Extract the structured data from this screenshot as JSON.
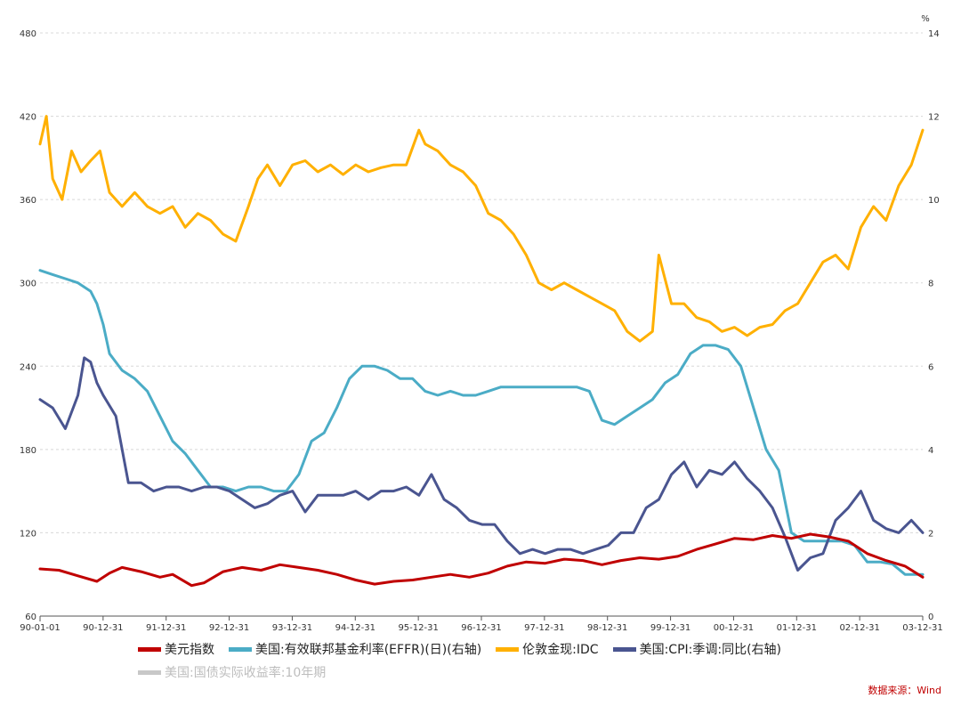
{
  "chart_data": {
    "type": "line",
    "left_axis": {
      "ticks": [
        "60",
        "120",
        "180",
        "240",
        "300",
        "360",
        "420",
        "480"
      ],
      "range": [
        60,
        480
      ]
    },
    "right_axis": {
      "unit": "%",
      "ticks": [
        "0",
        "2",
        "4",
        "6",
        "8",
        "10",
        "12",
        "14"
      ],
      "range": [
        0,
        14
      ]
    },
    "x_ticks": [
      "90-01-01",
      "90-12-31",
      "91-12-31",
      "92-12-31",
      "93-12-31",
      "94-12-31",
      "95-12-31",
      "96-12-31",
      "97-12-31",
      "98-12-31",
      "99-12-31",
      "00-12-31",
      "01-12-31",
      "02-12-31",
      "03-12-31"
    ],
    "grid": "horizontal dashed",
    "legend_position": "bottom",
    "series": [
      {
        "name": "美元指数",
        "axis": "left",
        "color": "#c00000",
        "x": [
          1990.0,
          1990.3,
          1990.6,
          1990.9,
          1991.1,
          1991.3,
          1991.6,
          1991.9,
          1992.1,
          1992.4,
          1992.6,
          1992.9,
          1993.2,
          1993.5,
          1993.8,
          1994.1,
          1994.4,
          1994.7,
          1995.0,
          1995.3,
          1995.6,
          1995.9,
          1996.2,
          1996.5,
          1996.8,
          1997.1,
          1997.4,
          1997.7,
          1998.0,
          1998.3,
          1998.6,
          1998.9,
          1999.2,
          1999.5,
          1999.8,
          2000.1,
          2000.4,
          2000.7,
          2001.0,
          2001.3,
          2001.6,
          2001.9,
          2002.2,
          2002.5,
          2002.8,
          2003.1,
          2003.4,
          2003.7,
          2003.98
        ],
        "y": [
          94,
          93,
          89,
          85,
          91,
          95,
          92,
          88,
          90,
          82,
          84,
          92,
          95,
          93,
          97,
          95,
          93,
          90,
          86,
          83,
          85,
          86,
          88,
          90,
          88,
          91,
          96,
          99,
          98,
          101,
          100,
          97,
          100,
          102,
          101,
          103,
          108,
          112,
          116,
          115,
          118,
          116,
          119,
          117,
          114,
          105,
          100,
          96,
          88
        ]
      },
      {
        "name": "美国:有效联邦基金利率(EFFR)(日)(右轴)",
        "axis": "right",
        "color": "#4bacc6",
        "x": [
          1990.0,
          1990.2,
          1990.4,
          1990.6,
          1990.8,
          1990.9,
          1991.0,
          1991.1,
          1991.3,
          1991.5,
          1991.7,
          1991.9,
          1992.1,
          1992.3,
          1992.5,
          1992.7,
          1992.9,
          1993.1,
          1993.3,
          1993.5,
          1993.7,
          1993.9,
          1994.1,
          1994.3,
          1994.5,
          1994.7,
          1994.9,
          1995.1,
          1995.3,
          1995.5,
          1995.7,
          1995.9,
          1996.1,
          1996.3,
          1996.5,
          1996.7,
          1996.9,
          1997.1,
          1997.3,
          1997.5,
          1997.7,
          1997.9,
          1998.1,
          1998.3,
          1998.5,
          1998.7,
          1998.9,
          1999.1,
          1999.3,
          1999.5,
          1999.7,
          1999.9,
          2000.1,
          2000.3,
          2000.5,
          2000.7,
          2000.9,
          2001.1,
          2001.3,
          2001.5,
          2001.7,
          2001.9,
          2002.1,
          2002.3,
          2002.5,
          2002.7,
          2002.9,
          2003.1,
          2003.3,
          2003.5,
          2003.7,
          2003.98
        ],
        "y": [
          8.3,
          8.2,
          8.1,
          8.0,
          7.8,
          7.5,
          7.0,
          6.3,
          5.9,
          5.7,
          5.4,
          4.8,
          4.2,
          3.9,
          3.5,
          3.1,
          3.1,
          3.0,
          3.1,
          3.1,
          3.0,
          3.0,
          3.4,
          4.2,
          4.4,
          5.0,
          5.7,
          6.0,
          6.0,
          5.9,
          5.7,
          5.7,
          5.4,
          5.3,
          5.4,
          5.3,
          5.3,
          5.4,
          5.5,
          5.5,
          5.5,
          5.5,
          5.5,
          5.5,
          5.5,
          5.4,
          4.7,
          4.6,
          4.8,
          5.0,
          5.2,
          5.6,
          5.8,
          6.3,
          6.5,
          6.5,
          6.4,
          6.0,
          5.0,
          4.0,
          3.5,
          2.0,
          1.8,
          1.8,
          1.8,
          1.8,
          1.7,
          1.3,
          1.3,
          1.25,
          1.0,
          1.0
        ]
      },
      {
        "name": "伦敦金现:IDC",
        "axis": "left",
        "color": "#ffb000",
        "x": [
          1990.0,
          1990.1,
          1990.2,
          1990.35,
          1990.5,
          1990.65,
          1990.8,
          1990.95,
          1991.1,
          1991.3,
          1991.5,
          1991.7,
          1991.9,
          1992.1,
          1992.3,
          1992.5,
          1992.7,
          1992.9,
          1993.1,
          1993.3,
          1993.45,
          1993.6,
          1993.8,
          1994.0,
          1994.2,
          1994.4,
          1994.6,
          1994.8,
          1995.0,
          1995.2,
          1995.4,
          1995.6,
          1995.8,
          1996.0,
          1996.1,
          1996.3,
          1996.5,
          1996.7,
          1996.9,
          1997.1,
          1997.3,
          1997.5,
          1997.7,
          1997.9,
          1998.1,
          1998.3,
          1998.5,
          1998.7,
          1998.9,
          1999.1,
          1999.3,
          1999.5,
          1999.7,
          1999.8,
          2000.0,
          2000.2,
          2000.4,
          2000.6,
          2000.8,
          2001.0,
          2001.2,
          2001.4,
          2001.6,
          2001.8,
          2002.0,
          2002.2,
          2002.4,
          2002.6,
          2002.8,
          2003.0,
          2003.2,
          2003.4,
          2003.6,
          2003.8,
          2003.98
        ],
        "y": [
          400,
          420,
          375,
          360,
          395,
          380,
          388,
          395,
          365,
          355,
          365,
          355,
          350,
          355,
          340,
          350,
          345,
          335,
          330,
          355,
          375,
          385,
          370,
          385,
          388,
          380,
          385,
          378,
          385,
          380,
          383,
          385,
          385,
          410,
          400,
          395,
          385,
          380,
          370,
          350,
          345,
          335,
          320,
          300,
          295,
          300,
          295,
          290,
          285,
          280,
          265,
          258,
          265,
          320,
          285,
          285,
          275,
          272,
          265,
          268,
          262,
          268,
          270,
          280,
          285,
          300,
          315,
          320,
          310,
          340,
          355,
          345,
          370,
          385,
          410
        ]
      },
      {
        "name": "美国:CPI:季调:同比(右轴)",
        "axis": "right",
        "color": "#4a5590",
        "x": [
          1990.0,
          1990.2,
          1990.4,
          1990.6,
          1990.7,
          1990.8,
          1990.9,
          1991.0,
          1991.2,
          1991.4,
          1991.6,
          1991.8,
          1992.0,
          1992.2,
          1992.4,
          1992.6,
          1992.8,
          1993.0,
          1993.2,
          1993.4,
          1993.6,
          1993.8,
          1994.0,
          1994.2,
          1994.4,
          1994.6,
          1994.8,
          1995.0,
          1995.2,
          1995.4,
          1995.6,
          1995.8,
          1996.0,
          1996.2,
          1996.4,
          1996.6,
          1996.8,
          1997.0,
          1997.2,
          1997.4,
          1997.6,
          1997.8,
          1998.0,
          1998.2,
          1998.4,
          1998.6,
          1998.8,
          1999.0,
          1999.2,
          1999.4,
          1999.6,
          1999.8,
          2000.0,
          2000.2,
          2000.4,
          2000.6,
          2000.8,
          2001.0,
          2001.2,
          2001.4,
          2001.6,
          2001.8,
          2002.0,
          2002.2,
          2002.4,
          2002.6,
          2002.8,
          2003.0,
          2003.2,
          2003.4,
          2003.6,
          2003.8,
          2003.98
        ],
        "y": [
          5.2,
          5.0,
          4.5,
          5.3,
          6.2,
          6.1,
          5.6,
          5.3,
          4.8,
          3.2,
          3.2,
          3.0,
          3.1,
          3.1,
          3.0,
          3.1,
          3.1,
          3.0,
          2.8,
          2.6,
          2.7,
          2.9,
          3.0,
          2.5,
          2.9,
          2.9,
          2.9,
          3.0,
          2.8,
          3.0,
          3.0,
          3.1,
          2.9,
          3.4,
          2.8,
          2.6,
          2.3,
          2.2,
          2.2,
          1.8,
          1.5,
          1.6,
          1.5,
          1.6,
          1.6,
          1.5,
          1.6,
          1.7,
          2.0,
          2.0,
          2.6,
          2.8,
          3.4,
          3.7,
          3.1,
          3.5,
          3.4,
          3.7,
          3.3,
          3.0,
          2.6,
          1.9,
          1.1,
          1.4,
          1.5,
          2.3,
          2.6,
          3.0,
          2.3,
          2.1,
          2.0,
          2.3,
          2.0
        ]
      },
      {
        "name": "美国:国债实际收益率:10年期",
        "axis": "right",
        "color": "#c8c8c8",
        "x": [],
        "y": []
      }
    ],
    "source": "数据来源：Wind"
  }
}
